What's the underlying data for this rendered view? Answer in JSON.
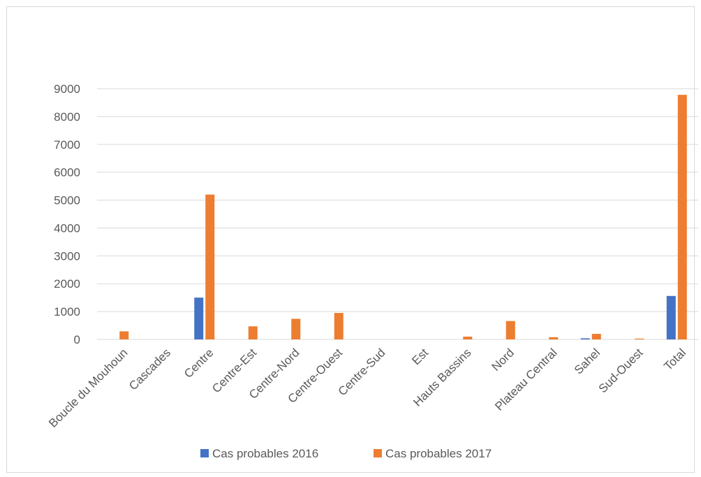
{
  "chart_data": {
    "type": "bar",
    "categories": [
      "Boucle du Mouhoun",
      "Cascades",
      "Centre",
      "Centre-Est",
      "Centre-Nord",
      "Centre-Ouest",
      "Centre-Sud",
      "Est",
      "Hauts Bassins",
      "Nord",
      "Plateau Central",
      "Sahel",
      "Sud-Ouest",
      "Total"
    ],
    "series": [
      {
        "name": "Cas probables 2016",
        "color": "#4472C4",
        "values": [
          0,
          0,
          1500,
          0,
          0,
          0,
          0,
          0,
          0,
          0,
          0,
          40,
          0,
          1560
        ]
      },
      {
        "name": "Cas probables 2017",
        "color": "#ED7D31",
        "values": [
          290,
          0,
          5200,
          470,
          740,
          950,
          0,
          0,
          100,
          660,
          80,
          200,
          30,
          8780
        ]
      }
    ],
    "yticks": [
      "0",
      "1000",
      "2000",
      "3000",
      "4000",
      "5000",
      "6000",
      "7000",
      "8000",
      "9000"
    ],
    "ylim": [
      0,
      9000
    ],
    "grid": true,
    "legend_position": "bottom"
  }
}
